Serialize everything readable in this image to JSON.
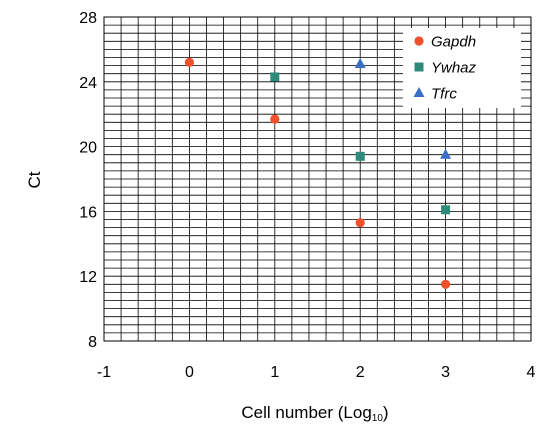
{
  "chart_data": {
    "type": "scatter",
    "xlabel": "Cell number (Log",
    "xlabel_sub": "10",
    "xlabel_end": ")",
    "ylabel": "Ct",
    "xlim": [
      -1,
      4
    ],
    "ylim": [
      8,
      28
    ],
    "xticks": [
      -1,
      0,
      1,
      2,
      3,
      4
    ],
    "yticks": [
      8,
      12,
      16,
      20,
      24,
      28
    ],
    "grid": "on (minor gridlines)",
    "legend_position": "top-right",
    "series": [
      {
        "name": "Gapdh",
        "marker": "circle",
        "color": "#f0502a",
        "x": [
          0,
          1,
          2,
          3
        ],
        "y": [
          25.2,
          21.7,
          15.3,
          11.5
        ]
      },
      {
        "name": "Ywhaz",
        "marker": "square",
        "color": "#2e8b7a",
        "x": [
          1,
          2,
          3
        ],
        "y": [
          24.3,
          19.4,
          16.1
        ]
      },
      {
        "name": "Tfrc",
        "marker": "triangle",
        "color": "#3a6fc4",
        "x": [
          2,
          3
        ],
        "y": [
          25.1,
          19.5
        ]
      }
    ]
  }
}
